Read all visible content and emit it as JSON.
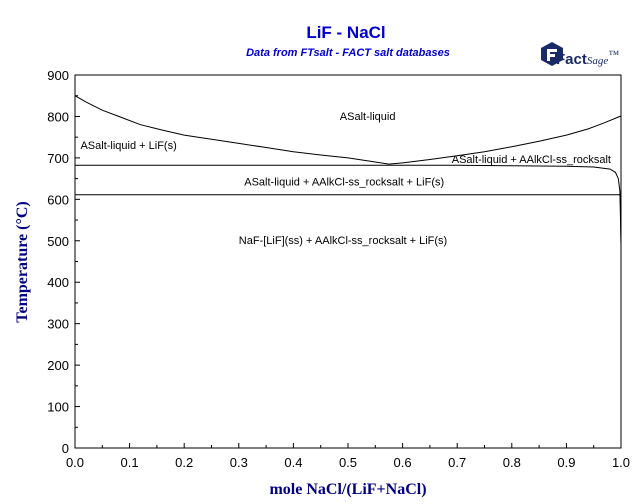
{
  "chart_data": {
    "type": "line",
    "title": "LiF - NaCl",
    "subtitle": "Data from FTsalt - FACT salt databases",
    "xlabel": "mole NaCl/(LiF+NaCl)",
    "ylabel": "Temperature (°C)",
    "xlim": [
      0,
      1
    ],
    "ylim": [
      0,
      900
    ],
    "xticks": [
      "0.0",
      "0.1",
      "0.2",
      "0.3",
      "0.4",
      "0.5",
      "0.6",
      "0.7",
      "0.8",
      "0.9",
      "1.0"
    ],
    "yticks": [
      "0",
      "100",
      "200",
      "300",
      "400",
      "500",
      "600",
      "700",
      "800",
      "900"
    ],
    "grid": false,
    "series": [
      {
        "x": [
          0.0,
          0.02,
          0.05,
          0.08,
          0.12,
          0.16,
          0.2,
          0.25,
          0.3,
          0.35,
          0.4,
          0.45,
          0.5,
          0.55,
          0.575
        ],
        "y": [
          850,
          835,
          815,
          800,
          780,
          767,
          755,
          745,
          735,
          725,
          715,
          707,
          700,
          690,
          685
        ]
      },
      {
        "x": [
          0.575,
          0.6,
          0.65,
          0.7,
          0.75,
          0.8,
          0.85,
          0.9,
          0.94,
          0.97,
          1.0
        ],
        "y": [
          685,
          688,
          696,
          705,
          715,
          727,
          740,
          755,
          770,
          785,
          801
        ]
      },
      {
        "x": [
          0.0,
          0.575,
          0.6,
          0.7,
          0.8,
          0.9,
          0.95,
          0.98,
          0.99,
          0.995,
          0.998,
          1.0
        ],
        "y": [
          682,
          682,
          682,
          682,
          681,
          680,
          678,
          673,
          665,
          650,
          620,
          490
        ]
      },
      {
        "x": [
          0.0,
          0.5,
          0.998
        ],
        "y": [
          611,
          611,
          611
        ]
      },
      {
        "x": [
          0.998,
          0.999,
          1.0
        ],
        "y": [
          611,
          590,
          490
        ]
      },
      {
        "x": [
          1.0,
          1.0
        ],
        "y": [
          490,
          680
        ]
      }
    ],
    "annotations": [
      {
        "text": "ASalt-liquid",
        "x": 0.485,
        "y": 792
      },
      {
        "text": "ASalt-liquid + LiF(s)",
        "x": 0.01,
        "y": 722
      },
      {
        "text": "ASalt-liquid + AAlkCl-ss_rocksalt",
        "x": 0.69,
        "y": 688
      },
      {
        "text": "ASalt-liquid + AAlkCl-ss_rocksalt + LiF(s)",
        "x": 0.31,
        "y": 633
      },
      {
        "text": "NaF-[LiF](ss) + AAlkCl-ss_rocksalt + LiF(s)",
        "x": 0.3,
        "y": 492
      }
    ]
  },
  "logo": {
    "text": "FactSage",
    "suffix": "™"
  }
}
